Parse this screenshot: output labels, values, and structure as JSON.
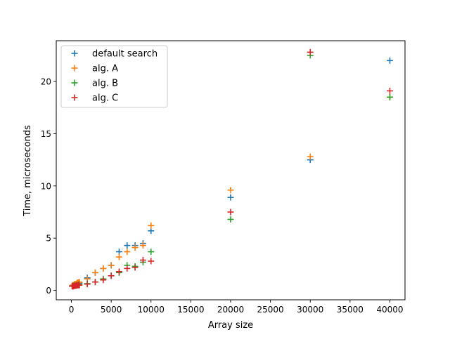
{
  "chart_data": {
    "type": "scatter",
    "title": "",
    "xlabel": "Array size",
    "ylabel": "Time, microseconds",
    "xlim": [
      -1900,
      41900
    ],
    "ylim": [
      -0.9,
      23.9
    ],
    "xticks": [
      0,
      5000,
      10000,
      15000,
      20000,
      25000,
      30000,
      35000,
      40000
    ],
    "yticks": [
      0,
      5,
      10,
      15,
      20
    ],
    "grid": false,
    "legend_position": "top-left",
    "marker": "+",
    "series": [
      {
        "name": "default search",
        "color": "#1f77b4",
        "x": [
          100,
          200,
          300,
          400,
          500,
          600,
          700,
          800,
          900,
          1000,
          2000,
          3000,
          4000,
          5000,
          6000,
          7000,
          8000,
          9000,
          10000,
          20000,
          30000,
          40000
        ],
        "y": [
          0.45,
          0.5,
          0.5,
          0.55,
          0.55,
          0.6,
          0.6,
          0.65,
          0.65,
          0.7,
          1.2,
          1.7,
          2.1,
          2.4,
          3.7,
          4.3,
          4.3,
          4.5,
          5.7,
          8.9,
          12.5,
          22.0
        ]
      },
      {
        "name": "alg. A",
        "color": "#ff7f0e",
        "x": [
          100,
          200,
          300,
          400,
          500,
          600,
          700,
          800,
          900,
          1000,
          2000,
          3000,
          4000,
          5000,
          6000,
          7000,
          8000,
          9000,
          10000,
          20000,
          30000,
          40000
        ],
        "y": [
          0.45,
          0.5,
          0.5,
          0.6,
          0.6,
          0.6,
          0.7,
          0.75,
          0.75,
          0.8,
          1.1,
          1.7,
          2.1,
          2.4,
          3.2,
          3.7,
          4.1,
          4.3,
          6.2,
          9.6,
          12.8,
          18.5
        ]
      },
      {
        "name": "alg. B",
        "color": "#2ca02c",
        "x": [
          100,
          200,
          300,
          400,
          500,
          600,
          700,
          800,
          900,
          1000,
          2000,
          3000,
          4000,
          5000,
          6000,
          7000,
          8000,
          9000,
          10000,
          20000,
          30000,
          40000
        ],
        "y": [
          0.4,
          0.4,
          0.45,
          0.45,
          0.45,
          0.5,
          0.5,
          0.5,
          0.55,
          0.55,
          0.65,
          0.8,
          1.1,
          1.4,
          1.7,
          2.4,
          2.3,
          2.7,
          3.7,
          6.8,
          22.5,
          18.5
        ]
      },
      {
        "name": "alg. C",
        "color": "#d62728",
        "x": [
          100,
          200,
          300,
          400,
          500,
          600,
          700,
          800,
          900,
          1000,
          2000,
          3000,
          4000,
          5000,
          6000,
          7000,
          8000,
          9000,
          10000,
          20000,
          30000,
          40000
        ],
        "y": [
          0.4,
          0.4,
          0.4,
          0.45,
          0.45,
          0.45,
          0.5,
          0.5,
          0.5,
          0.5,
          0.6,
          0.8,
          1.0,
          1.4,
          1.8,
          2.1,
          2.2,
          2.9,
          2.8,
          7.5,
          22.8,
          19.1
        ]
      }
    ]
  }
}
